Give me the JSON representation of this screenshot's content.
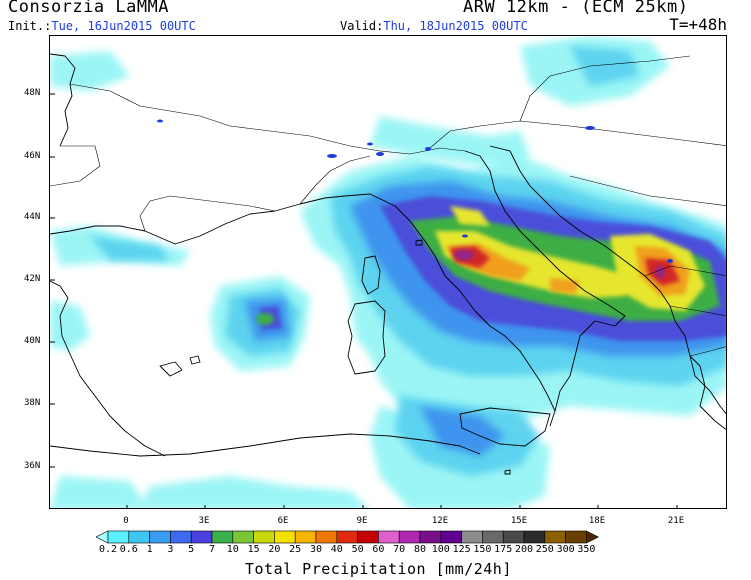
{
  "header": {
    "org": "Consorzia LaMMA",
    "model": "ARW 12km - (ECM 25km)",
    "init_label": "Init.:",
    "init_value": "Tue, 16Jun2015 00UTC",
    "valid_label": "Valid:",
    "valid_value": "Thu, 18Jun2015 00UTC",
    "lead": "T=+48h"
  },
  "map": {
    "lat_labels": [
      "48N",
      "46N",
      "44N",
      "42N",
      "40N",
      "38N",
      "36N"
    ],
    "lon_labels": [
      "0",
      "3E",
      "6E",
      "9E",
      "12E",
      "15E",
      "18E",
      "21E"
    ],
    "colors": {
      "light_cyan": "#96f5f5",
      "cyan": "#5ad2ef",
      "blue": "#3c91ee",
      "indigo": "#4b4bd8",
      "green": "#3db43d",
      "yellow": "#e6e62f",
      "orange": "#f0a01e",
      "red": "#d22828",
      "purple": "#8c2890",
      "coast": "#000000",
      "lakes": "#1e3cdc"
    }
  },
  "legend": {
    "title": "Total Precipitation [mm/24h]",
    "labels": [
      "0.2",
      "0.6",
      "1",
      "3",
      "5",
      "7",
      "10",
      "15",
      "20",
      "25",
      "30",
      "40",
      "50",
      "60",
      "70",
      "80",
      "100",
      "125",
      "150",
      "175",
      "200",
      "250",
      "300",
      "350"
    ],
    "colors": [
      "#aaffff",
      "#5bf0ff",
      "#3fc6f3",
      "#3b9bf0",
      "#3c6bf0",
      "#4c3fe0",
      "#3ab04a",
      "#7ac736",
      "#c8d80c",
      "#f3e200",
      "#f5b400",
      "#f07800",
      "#e02a10",
      "#c40000",
      "#e060d0",
      "#b028b0",
      "#7a0f8a",
      "#600090",
      "#8c8c8c",
      "#696969",
      "#4a4a4a",
      "#2a2a2a",
      "#8c6000",
      "#6a4000",
      "#502800"
    ]
  }
}
